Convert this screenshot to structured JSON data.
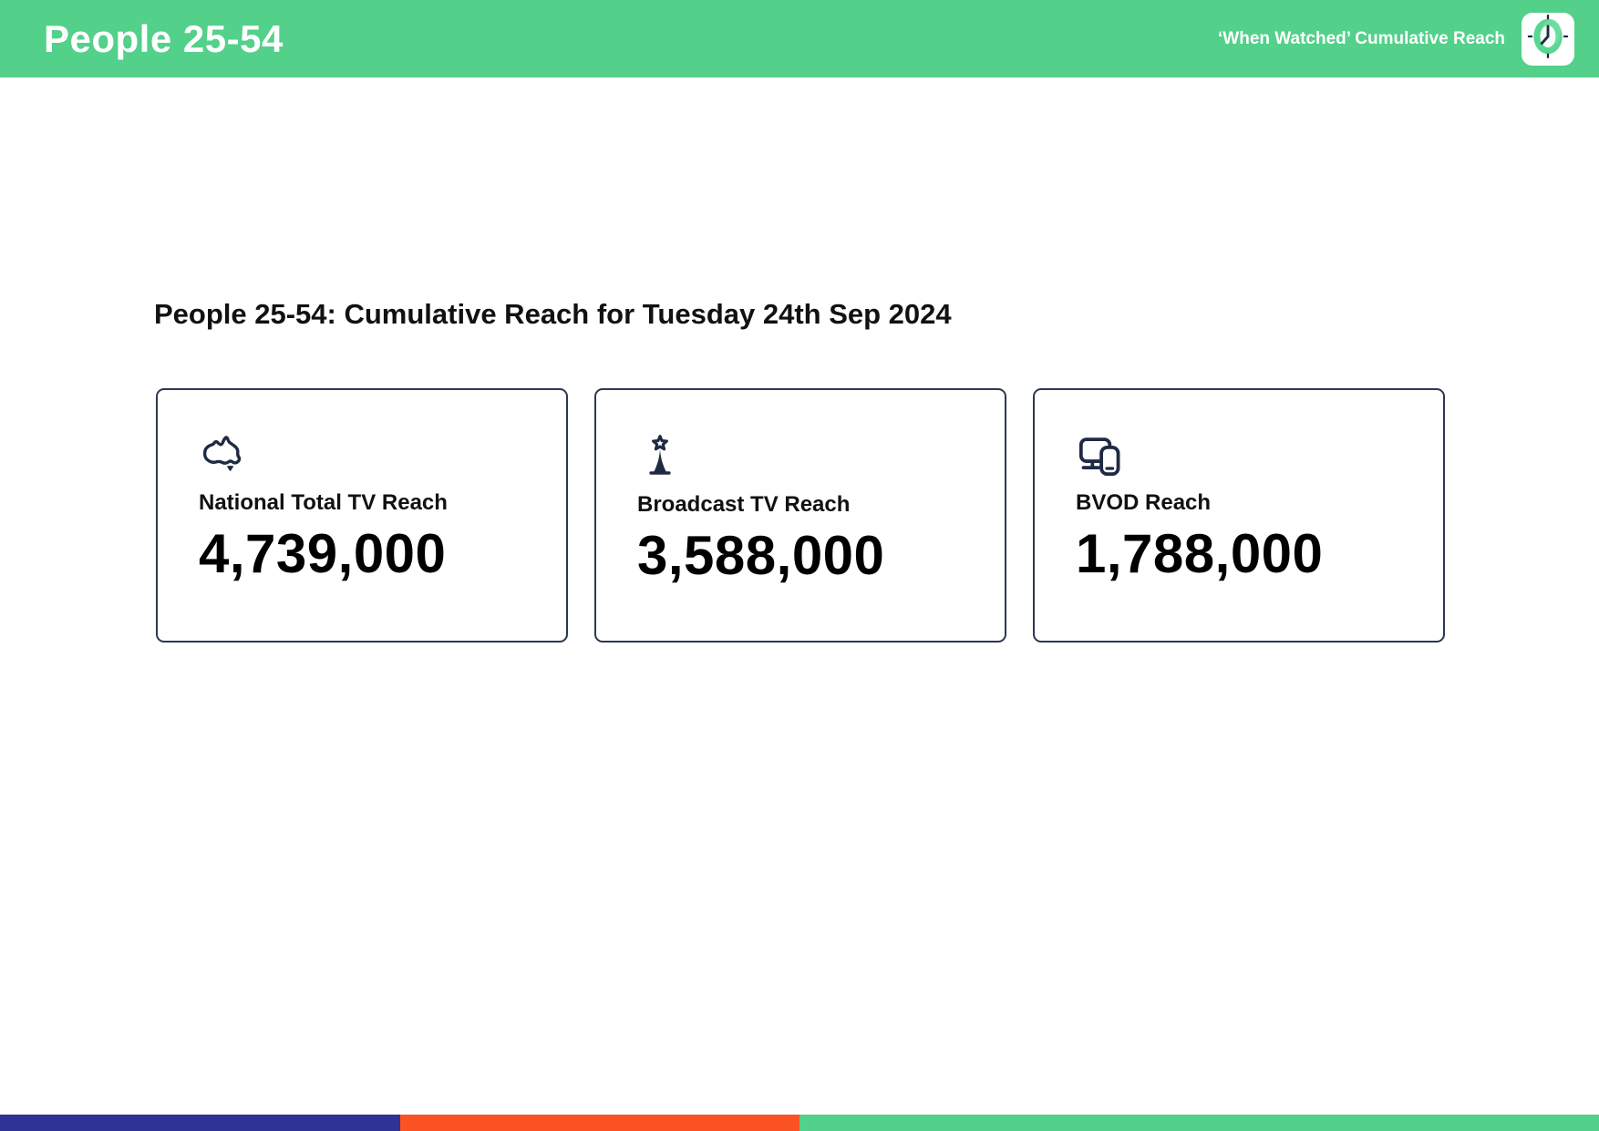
{
  "header": {
    "title": "People 25-54",
    "subtitle": "‘When Watched’ Cumulative Reach"
  },
  "main": {
    "heading": "People 25-54: Cumulative Reach for Tuesday 24th Sep 2024",
    "cards": [
      {
        "icon": "australia-map-icon",
        "label": "National Total TV Reach",
        "value": "4,739,000"
      },
      {
        "icon": "broadcast-tower-icon",
        "label": "Broadcast TV Reach",
        "value": "3,588,000"
      },
      {
        "icon": "tv-and-phone-devices-icon",
        "label": "BVOD Reach",
        "value": "1,788,000"
      }
    ]
  },
  "footer": {
    "segments": [
      {
        "name": "navy",
        "color": "#2d3493",
        "width_pct": 25
      },
      {
        "name": "orange",
        "color": "#fb5224",
        "width_pct": 25
      },
      {
        "name": "green",
        "color": "#53d08a",
        "width_pct": 50
      }
    ]
  },
  "colors": {
    "header_green": "#53d08a",
    "icon_navy": "#1f2a44",
    "card_border": "#2b3850",
    "clock_ring_green": "#57d791",
    "clock_face_white": "#f4fef8"
  }
}
